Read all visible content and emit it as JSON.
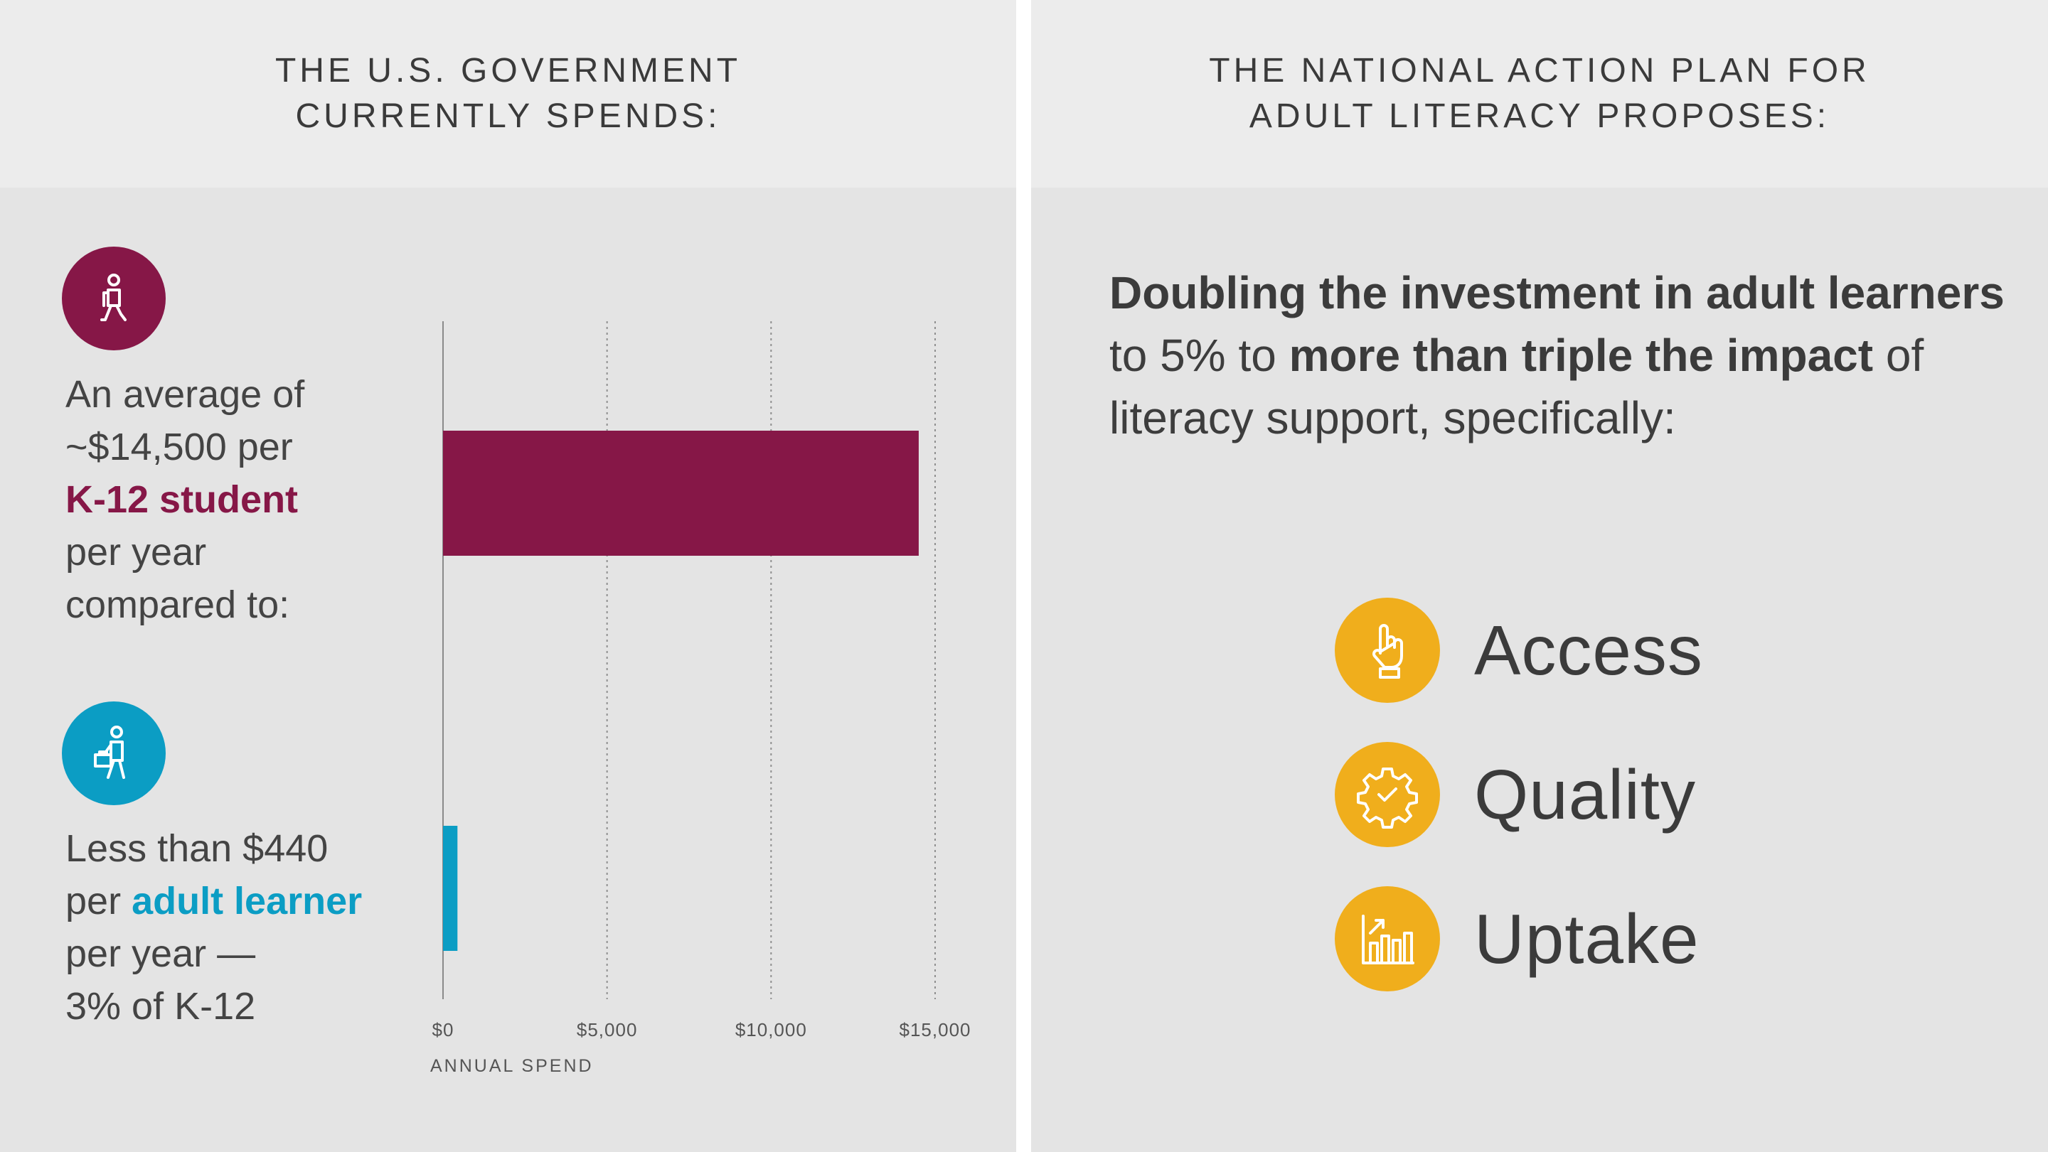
{
  "left_panel": {
    "header_line1": "THE U.S. GOVERNMENT",
    "header_line2": "CURRENTLY SPENDS:",
    "k12": {
      "line1": "An average of",
      "line2": "~$14,500 per",
      "line3": "K-12 student",
      "line4": "per year",
      "line5": "compared to:",
      "color": "#861747",
      "icon": "student-walking-icon"
    },
    "adult": {
      "line1": "Less than $440",
      "line2_prefix": "per ",
      "line2_highlight": "adult learner",
      "line3": "per year —",
      "line4": "3% of K-12",
      "color": "#0b9dc4",
      "icon": "adult-learner-briefcase-icon"
    }
  },
  "right_panel": {
    "header_line1": "THE NATIONAL ACTION PLAN FOR",
    "header_line2": "ADULT LITERACY PROPOSES:",
    "proposal": {
      "b1": "Doubling the investment in adult learners",
      "t1": " to 5% to ",
      "b2": "more than triple the impact",
      "t2": " of literacy support, specifically:"
    },
    "items": [
      {
        "label": "Access",
        "icon": "pointing-hand-icon"
      },
      {
        "label": "Quality",
        "icon": "gear-check-icon"
      },
      {
        "label": "Uptake",
        "icon": "bar-chart-growth-icon"
      }
    ],
    "accent_color": "#f0ae1c"
  },
  "chart_data": {
    "type": "bar",
    "orientation": "horizontal",
    "categories": [
      "K-12 student",
      "adult learner"
    ],
    "values": [
      14500,
      440
    ],
    "colors": [
      "#861747",
      "#0b9dc4"
    ],
    "xlim": [
      0,
      15000
    ],
    "xticks": [
      0,
      5000,
      10000,
      15000
    ],
    "xtick_labels": [
      "$0",
      "$5,000",
      "$10,000",
      "$15,000"
    ],
    "xlabel": "ANNUAL SPEND",
    "grid": "vertical dotted"
  }
}
